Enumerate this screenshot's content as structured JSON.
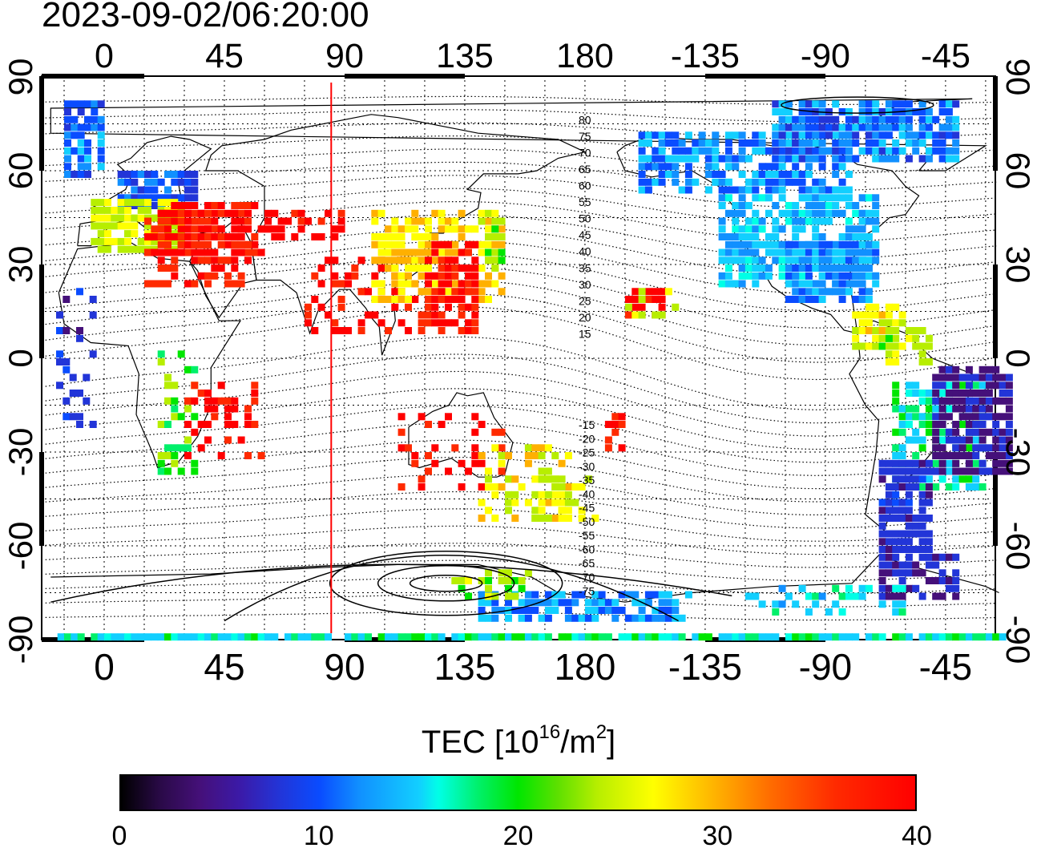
{
  "timestamp": "2023-09-02/06:20:00",
  "top_ticks": [
    "0",
    "45",
    "90",
    "135",
    "180",
    "-135",
    "-90",
    "-45"
  ],
  "bottom_ticks": [
    "0",
    "45",
    "90",
    "135",
    "180",
    "-135",
    "-90",
    "-45"
  ],
  "left_ticks": [
    "90",
    "60",
    "30",
    "0",
    "-30",
    "-60",
    "-90"
  ],
  "right_ticks": [
    "90",
    "60",
    "30",
    "0",
    "-30",
    "-60",
    "-90"
  ],
  "contour_labels": [
    "80",
    "75",
    "70",
    "65",
    "60",
    "55",
    "50",
    "45",
    "40",
    "35",
    "30",
    "25",
    "20",
    "15",
    "-15",
    "-20",
    "-25",
    "-30",
    "-35",
    "-40",
    "-45",
    "-50",
    "-55",
    "-60",
    "-65",
    "-70",
    "-75"
  ],
  "colorbar": {
    "title_prefix": "TEC  [10",
    "title_exp1": "16",
    "title_mid": "/m",
    "title_exp2": "2",
    "title_suffix": "]",
    "ticks": [
      "0",
      "10",
      "20",
      "30",
      "40"
    ],
    "range": [
      0,
      40
    ]
  },
  "map": {
    "projection": "equirectangular",
    "lon_range_shown": [
      -23,
      337
    ],
    "lat_range": [
      -90,
      90
    ],
    "red_meridian_lon": 85
  }
}
